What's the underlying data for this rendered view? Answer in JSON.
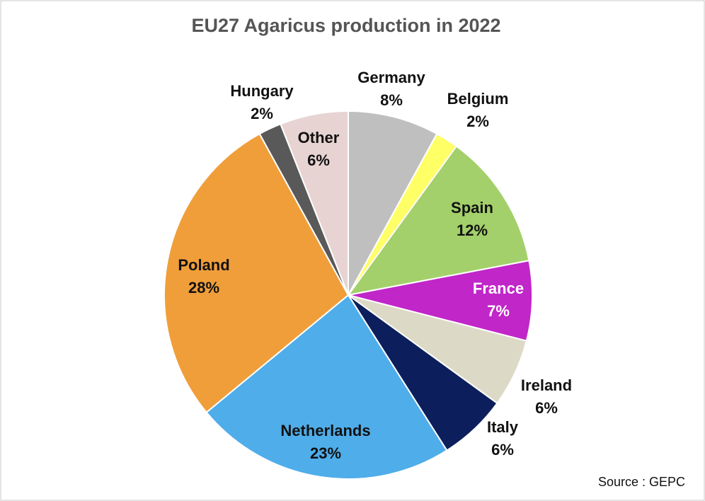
{
  "chart_data": {
    "type": "pie",
    "title": "EU27 Agaricus production in 2022",
    "categories": [
      "Germany",
      "Belgium",
      "Spain",
      "France",
      "Ireland",
      "Italy",
      "Netherlands",
      "Poland",
      "Hungary",
      "Other"
    ],
    "values": [
      8,
      2,
      12,
      7,
      6,
      6,
      23,
      28,
      2,
      6
    ],
    "value_labels": [
      "8%",
      "2%",
      "12%",
      "7%",
      "6%",
      "6%",
      "23%",
      "28%",
      "2%",
      "6%"
    ],
    "colors": [
      "#bfbfbf",
      "#ffff66",
      "#a3d06a",
      "#c026c8",
      "#dcdac6",
      "#0c1f5c",
      "#4fadea",
      "#f09e3a",
      "#595959",
      "#e8d3d3"
    ],
    "source": "Source : GEPC"
  }
}
